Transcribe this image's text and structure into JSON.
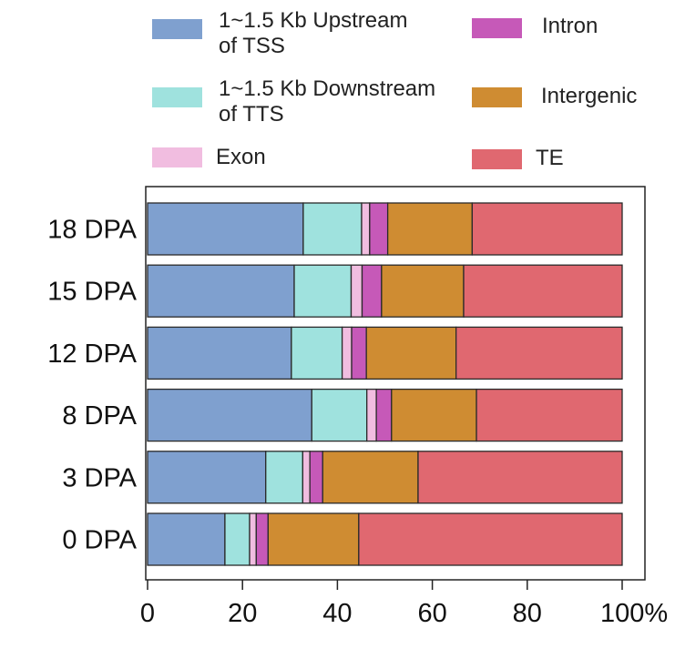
{
  "chart_data": {
    "type": "bar",
    "orientation": "horizontal",
    "stacked": true,
    "categories": [
      "18 DPA",
      "15 DPA",
      "12 DPA",
      "8 DPA",
      "3 DPA",
      "0 DPA"
    ],
    "series": [
      {
        "name": "1~1.5 Kb Upstream of TSS",
        "label_lines": [
          "1~1.5 Kb Upstream",
          "of TSS"
        ],
        "color": "#7fa0cf",
        "values": [
          32.8,
          30.9,
          30.3,
          34.6,
          24.9,
          16.3
        ]
      },
      {
        "name": "1~1.5 Kb Downstream of TTS",
        "label_lines": [
          "1~1.5 Kb Downstream",
          "of TTS"
        ],
        "color": "#9fe2de",
        "values": [
          12.3,
          12.0,
          10.7,
          11.6,
          7.8,
          5.2
        ]
      },
      {
        "name": "Exon",
        "label_lines": [
          "Exon"
        ],
        "color": "#f1bde0",
        "values": [
          1.7,
          2.3,
          2.0,
          2.0,
          1.5,
          1.4
        ]
      },
      {
        "name": "Intron",
        "label_lines": [
          "Intron"
        ],
        "color": "#c659b8",
        "values": [
          3.8,
          4.1,
          3.1,
          3.2,
          2.7,
          2.5
        ]
      },
      {
        "name": "Intergenic",
        "label_lines": [
          "Intergenic"
        ],
        "color": "#cf8c32",
        "values": [
          17.8,
          17.3,
          18.9,
          17.9,
          20.1,
          19.1
        ]
      },
      {
        "name": "TE",
        "label_lines": [
          "TE"
        ],
        "color": "#e06870",
        "values": [
          31.6,
          33.4,
          35.0,
          30.7,
          43.0,
          55.5
        ]
      }
    ],
    "xlim": [
      0,
      100
    ],
    "xticks": [
      "0",
      "20",
      "40",
      "60",
      "80",
      "100%"
    ],
    "xtick_values": [
      0,
      20,
      40,
      60,
      80,
      100
    ],
    "xlabel": "",
    "ylabel": "",
    "legend": "top",
    "grid": false
  }
}
